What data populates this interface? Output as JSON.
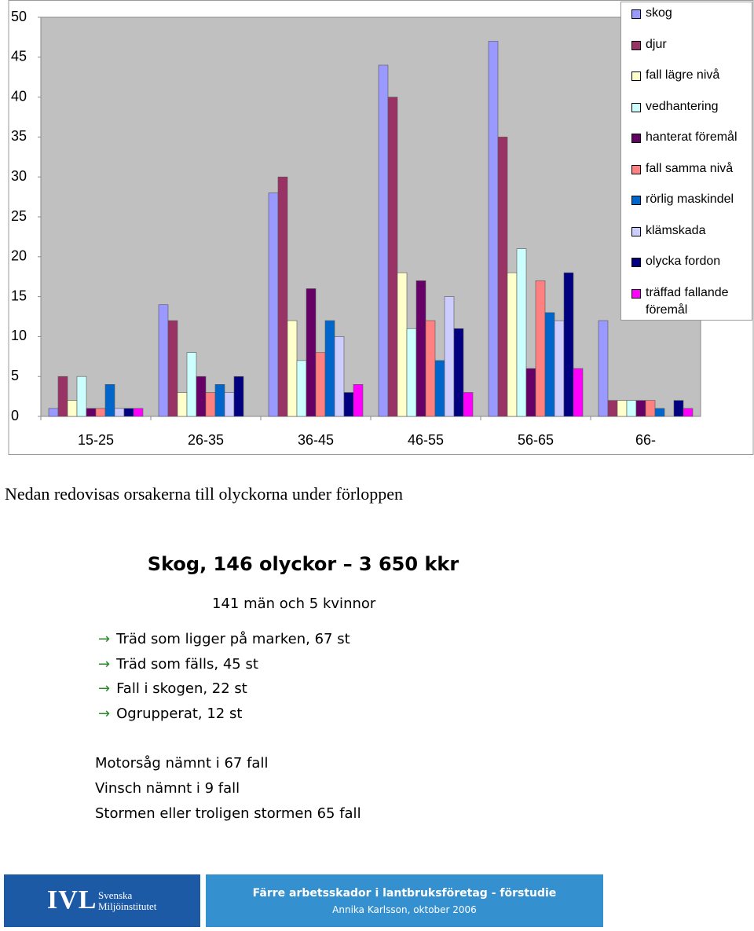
{
  "chart_data": {
    "type": "bar",
    "categories": [
      "15-25",
      "26-35",
      "36-45",
      "46-55",
      "56-65",
      "66-"
    ],
    "series": [
      {
        "name": "skog",
        "color": "#9999ff",
        "values": [
          1,
          14,
          28,
          44,
          47,
          12
        ]
      },
      {
        "name": "djur",
        "color": "#993366",
        "values": [
          5,
          12,
          30,
          40,
          35,
          2
        ]
      },
      {
        "name": "fall lägre nivå",
        "color": "#ffffcc",
        "values": [
          2,
          3,
          12,
          18,
          18,
          2
        ]
      },
      {
        "name": "vedhantering",
        "color": "#ccffff",
        "values": [
          5,
          8,
          7,
          11,
          21,
          2
        ]
      },
      {
        "name": "hanterat föremål",
        "color": "#660066",
        "values": [
          1,
          5,
          16,
          17,
          6,
          2
        ]
      },
      {
        "name": "fall samma nivå",
        "color": "#ff8080",
        "values": [
          1,
          3,
          8,
          12,
          17,
          2
        ]
      },
      {
        "name": "rörlig maskindel",
        "color": "#0066cc",
        "values": [
          4,
          4,
          12,
          7,
          13,
          1
        ]
      },
      {
        "name": "klämskada",
        "color": "#ccccff",
        "values": [
          1,
          3,
          10,
          15,
          12,
          0
        ]
      },
      {
        "name": "olycka fordon",
        "color": "#000080",
        "values": [
          1,
          5,
          3,
          11,
          18,
          2
        ]
      },
      {
        "name": "träffad fallande föremål",
        "color": "#ff00ff",
        "values": [
          1,
          0,
          4,
          3,
          6,
          1
        ]
      }
    ],
    "ylim": [
      0,
      50
    ],
    "yticks": [
      0,
      5,
      10,
      15,
      20,
      25,
      30,
      35,
      40,
      45,
      50
    ],
    "grid": false,
    "legend": "right"
  },
  "intro": "Nedan redovisas orsakerna till olyckorna under förloppen",
  "section": {
    "title": "Skog, 146 olyckor – 3 650 kkr",
    "subtitle": "141 män och 5 kvinnor",
    "items": [
      "Träd som ligger på marken, 67 st",
      "Träd som fälls, 45 st",
      "Fall i skogen, 22 st",
      "Ogrupperat, 12 st"
    ],
    "notes": [
      "Motorsåg nämnt i 67 fall",
      "Vinsch nämnt i 9 fall",
      "Stormen eller troligen stormen 65 fall"
    ]
  },
  "footer": {
    "logo": "IVL",
    "logo_lines": [
      "Svenska",
      "Miljöinstitutet"
    ],
    "title": "Färre arbetsskador i lantbruksföretag - förstudie",
    "author": "Annika Karlsson, oktober 2006"
  }
}
